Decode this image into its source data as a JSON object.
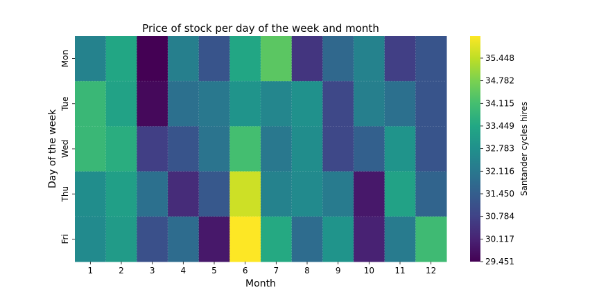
{
  "chart_data": {
    "type": "heatmap",
    "title": "Price of stock per day of the week and month",
    "xlabel": "Month",
    "ylabel": "Day of the week",
    "x_categories": [
      "1",
      "2",
      "3",
      "4",
      "5",
      "6",
      "7",
      "8",
      "9",
      "10",
      "11",
      "12"
    ],
    "y_categories": [
      "Mon",
      "Tue",
      "Wed",
      "Thu",
      "Fri"
    ],
    "colorbar_label": "Santander cycles hires",
    "colormap": "viridis",
    "vmin": 29.451,
    "vmax": 36.1,
    "colorbar_ticks": [
      29.451,
      30.117,
      30.784,
      31.45,
      32.116,
      32.783,
      33.449,
      34.115,
      34.782,
      35.448
    ],
    "colorbar_tick_labels": [
      "29.451",
      "30.117",
      "30.784",
      "31.450",
      "32.116",
      "32.783",
      "33.449",
      "34.115",
      "34.782",
      "35.448"
    ],
    "values": [
      [
        32.4,
        33.4,
        29.45,
        32.3,
        31.2,
        33.4,
        34.4,
        30.5,
        31.7,
        32.4,
        30.7,
        31.2
      ],
      [
        33.9,
        33.3,
        29.6,
        31.9,
        32.1,
        32.9,
        32.5,
        32.8,
        30.9,
        32.3,
        31.9,
        31.2
      ],
      [
        33.9,
        33.6,
        30.7,
        31.2,
        32.0,
        34.1,
        32.1,
        32.7,
        30.9,
        31.5,
        32.9,
        31.2
      ],
      [
        32.7,
        33.2,
        31.9,
        30.3,
        31.3,
        35.6,
        32.4,
        32.6,
        32.2,
        29.9,
        33.3,
        31.6
      ],
      [
        32.6,
        33.1,
        31.1,
        31.8,
        29.9,
        36.1,
        33.5,
        31.8,
        32.9,
        30.1,
        32.2,
        34.0
      ]
    ]
  }
}
